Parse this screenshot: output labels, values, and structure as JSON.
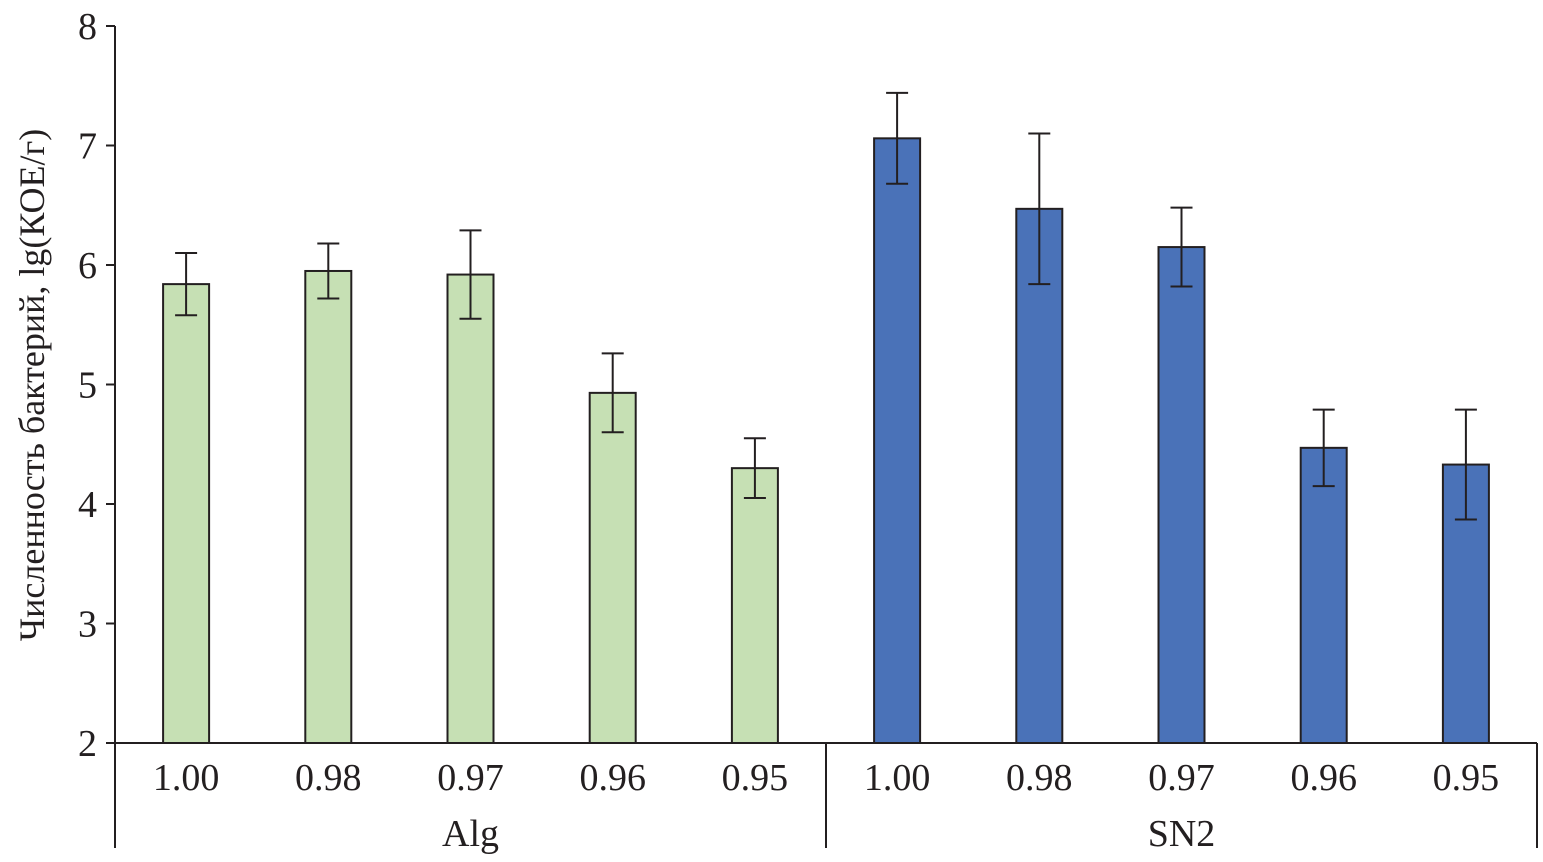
{
  "chart_data": {
    "type": "bar",
    "ylabel": "Численность бактерий, lg(КОЕ/г)",
    "xlabel": "",
    "ylim": [
      2,
      8
    ],
    "yticks": [
      2,
      3,
      4,
      5,
      6,
      7,
      8
    ],
    "grid": false,
    "groups": [
      {
        "name": "Alg",
        "color": "#c6e0b4",
        "categories": [
          "1.00",
          "0.98",
          "0.97",
          "0.96",
          "0.95"
        ],
        "values": [
          5.84,
          5.95,
          5.92,
          4.93,
          4.3
        ],
        "errors": [
          0.26,
          0.23,
          0.37,
          0.33,
          0.25
        ]
      },
      {
        "name": "SN2",
        "color": "#4a72b8",
        "categories": [
          "1.00",
          "0.98",
          "0.97",
          "0.96",
          "0.95"
        ],
        "values": [
          7.06,
          6.47,
          6.15,
          4.47,
          4.33
        ],
        "errors": [
          0.38,
          0.63,
          0.33,
          0.32,
          0.46
        ]
      }
    ]
  }
}
